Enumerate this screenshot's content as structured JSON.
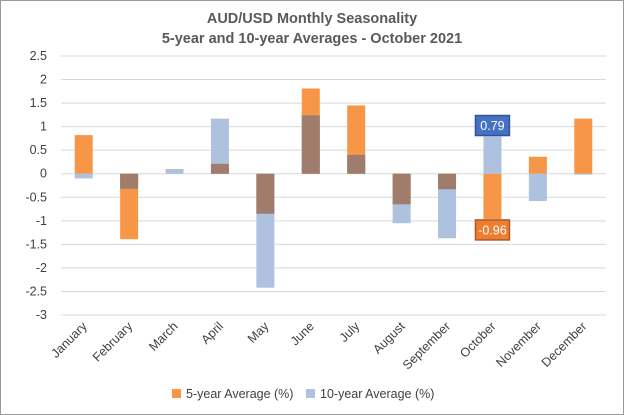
{
  "chart_data": {
    "type": "bar",
    "title_line1": "AUD/USD Monthly Seasonality",
    "title_line2": "5-year and 10-year Averages - October 2021",
    "categories": [
      "January",
      "February",
      "March",
      "April",
      "May",
      "June",
      "July",
      "August",
      "September",
      "October",
      "November",
      "December"
    ],
    "series": [
      {
        "name": "5-year Average (%)",
        "color": "#f79646",
        "values": [
          0.82,
          -1.39,
          0.0,
          0.21,
          -0.85,
          1.81,
          1.45,
          -0.65,
          -0.33,
          -0.96,
          0.36,
          1.17
        ]
      },
      {
        "name": "10-year Average (%)",
        "color": "#aec2df",
        "values": [
          -0.1,
          -0.32,
          0.1,
          1.17,
          -2.42,
          1.24,
          0.4,
          -1.05,
          -1.37,
          0.79,
          -0.58,
          -0.02
        ]
      }
    ],
    "overlap_color": "#a07c6c",
    "ylim": [
      -3,
      2.5
    ],
    "yticks": [
      "2.5",
      "2",
      "1.5",
      "1",
      "0.5",
      "0",
      "-0.5",
      "-1",
      "-1.5",
      "-2",
      "-2.5",
      "-3"
    ],
    "gridlines": true,
    "legend_position": "bottom",
    "annotations": [
      {
        "text": "0.79",
        "category": "October",
        "series": "10-year Average (%)",
        "fill": "#4472c4",
        "border": "#2f5597"
      },
      {
        "text": "-0.96",
        "category": "October",
        "series": "5-year Average (%)",
        "fill": "#ed7d31",
        "border": "#ae5a21"
      }
    ]
  }
}
